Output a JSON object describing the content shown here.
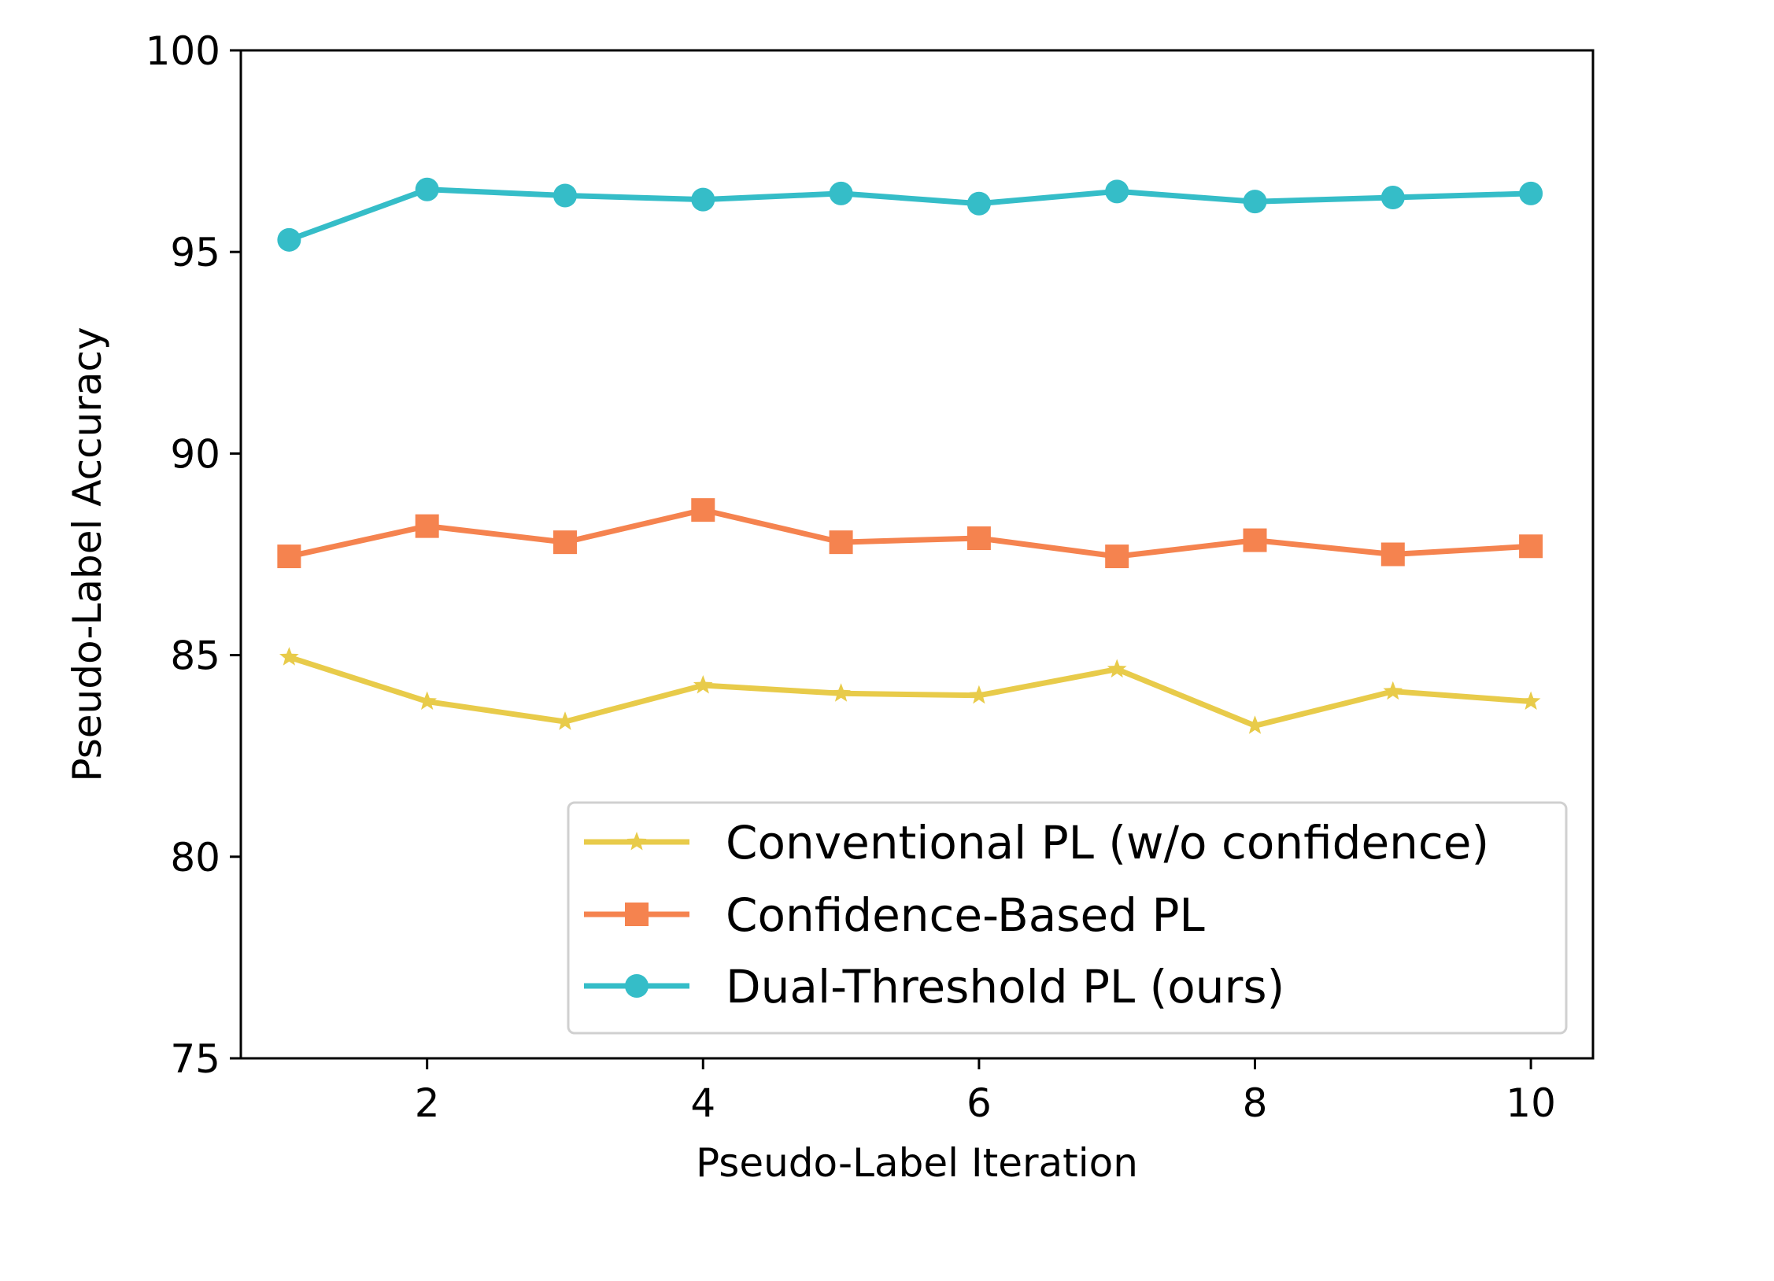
{
  "chart_data": {
    "type": "line",
    "title": "",
    "xlabel": "Pseudo-Label Iteration",
    "ylabel": "Pseudo-Label Accuracy",
    "xlim": [
      0.65,
      10.45
    ],
    "ylim": [
      75,
      100
    ],
    "xticks": [
      2,
      4,
      6,
      8,
      10
    ],
    "yticks": [
      75,
      80,
      85,
      90,
      95,
      100
    ],
    "grid": false,
    "legend_position": "lower-right",
    "x": [
      1,
      2,
      3,
      4,
      5,
      6,
      7,
      8,
      9,
      10
    ],
    "series": [
      {
        "name": "Conventional PL (w/o confidence)",
        "marker": "star",
        "color": "#E8CB4A",
        "values": [
          84.95,
          83.85,
          83.35,
          84.25,
          84.05,
          84.0,
          84.65,
          83.25,
          84.1,
          83.85
        ]
      },
      {
        "name": "Confidence-Based PL",
        "marker": "square",
        "color": "#F5834F",
        "values": [
          87.45,
          88.2,
          87.8,
          88.6,
          87.8,
          87.9,
          87.45,
          87.85,
          87.5,
          87.7
        ]
      },
      {
        "name": "Dual-Threshold PL (ours)",
        "marker": "circle",
        "color": "#35BDC8",
        "values": [
          95.3,
          96.55,
          96.4,
          96.3,
          96.45,
          96.2,
          96.5,
          96.25,
          96.35,
          96.45
        ]
      }
    ]
  }
}
